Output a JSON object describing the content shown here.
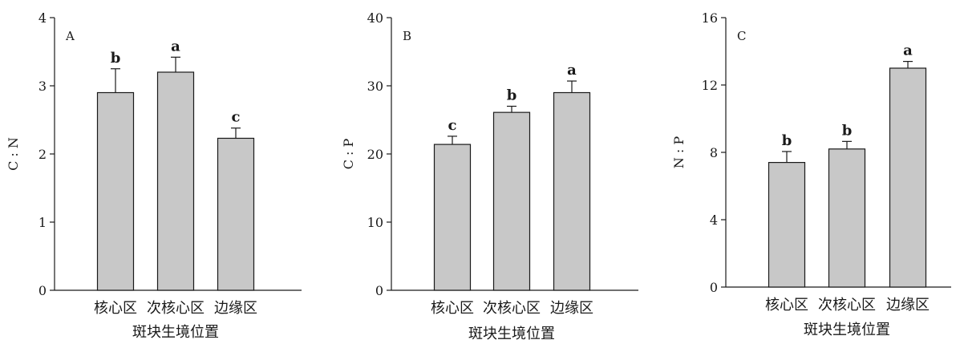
{
  "chart_data": [
    {
      "panel": "A",
      "type": "bar",
      "ylabel": "C : N",
      "xlabel": "斑块生境位置",
      "categories": [
        "核心区",
        "次核心区",
        "边缘区"
      ],
      "values": [
        2.9,
        3.2,
        2.23
      ],
      "errors": [
        0.35,
        0.22,
        0.15
      ],
      "letters": [
        "b",
        "a",
        "c"
      ],
      "ylim": [
        0,
        4
      ],
      "yticks": [
        0,
        1,
        2,
        3,
        4
      ],
      "yticklabels": [
        "0",
        "1",
        "2",
        "3",
        "4"
      ]
    },
    {
      "panel": "B",
      "type": "bar",
      "ylabel": "C : P",
      "xlabel": "斑块生境位置",
      "categories": [
        "核心区",
        "次核心区",
        "边缘区"
      ],
      "values": [
        21.4,
        26.1,
        29.0
      ],
      "errors": [
        1.2,
        0.9,
        1.7
      ],
      "letters": [
        "c",
        "b",
        "a"
      ],
      "ylim": [
        0,
        40
      ],
      "yticks": [
        0,
        10,
        20,
        30,
        40
      ],
      "yticklabels": [
        "0",
        "10",
        "20",
        "30",
        "40"
      ]
    },
    {
      "panel": "C",
      "type": "bar",
      "ylabel": "N : P",
      "xlabel": "斑块生境位置",
      "categories": [
        "核心区",
        "次核心区",
        "边缘区"
      ],
      "values": [
        7.4,
        8.2,
        13.0
      ],
      "errors": [
        0.65,
        0.45,
        0.4
      ],
      "letters": [
        "b",
        "b",
        "a"
      ],
      "ylim": [
        0,
        16
      ],
      "yticks": [
        0,
        4,
        8,
        12,
        16
      ],
      "yticklabels": [
        "0",
        "4",
        "8",
        "12",
        "16"
      ]
    }
  ],
  "colors": {
    "bar_fill": "#c8c8c8",
    "axis": "#1a1a1a"
  }
}
